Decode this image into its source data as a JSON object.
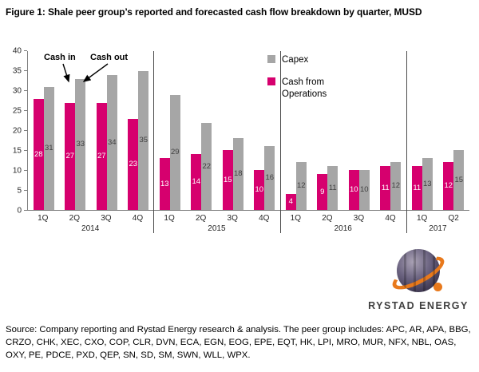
{
  "title": "Figure 1: Shale peer group’s reported and forecasted cash flow breakdown by quarter, MUSD",
  "annotations": {
    "cash_in": "Cash in",
    "cash_out": "Cash out"
  },
  "legend": [
    {
      "label": "Capex",
      "color": "#a6a6a6"
    },
    {
      "label": "Cash from Operations",
      "color": "#d6006e"
    }
  ],
  "logo": {
    "text": "RYSTAD ENERGY",
    "sphere_color": "#554d68",
    "swoosh_color": "#e8791c"
  },
  "source": "Source: Company reporting and Rystad Energy research & analysis. The peer group includes: APC, AR, APA, BBG, CRZO, CHK, XEC, CXO, COP, CLR, DVN, ECA, EGN, EOG, EPE, EQT, HK, LPI, MRO, MUR, NFX, NBL, OAS, OXY, PE, PDCE, PXD, QEP, SN, SD, SM, SWN, WLL, WPX.",
  "chart_data": {
    "type": "bar",
    "title": "Shale peer group’s reported and forecasted cash flow breakdown by quarter, MUSD",
    "xlabel": "",
    "ylabel": "",
    "ylim": [
      0,
      40
    ],
    "yticks": [
      0,
      5,
      10,
      15,
      20,
      25,
      30,
      35,
      40
    ],
    "grid": false,
    "legend_position": "top-center-inside",
    "groups": [
      {
        "year": "2014",
        "quarters": [
          "1Q",
          "2Q",
          "3Q",
          "4Q"
        ]
      },
      {
        "year": "2015",
        "quarters": [
          "1Q",
          "2Q",
          "3Q",
          "4Q"
        ]
      },
      {
        "year": "2016",
        "quarters": [
          "1Q",
          "2Q",
          "3Q",
          "4Q"
        ]
      },
      {
        "year": "2017",
        "quarters": [
          "1Q",
          "Q2"
        ]
      }
    ],
    "categories": [
      "1Q 2014",
      "2Q 2014",
      "3Q 2014",
      "4Q 2014",
      "1Q 2015",
      "2Q 2015",
      "3Q 2015",
      "4Q 2015",
      "1Q 2016",
      "2Q 2016",
      "3Q 2016",
      "4Q 2016",
      "1Q 2017",
      "Q2 2017"
    ],
    "series": [
      {
        "name": "Cash from Operations",
        "key": "cash-from-operations",
        "color": "#d6006e",
        "label_color": "#ffffff",
        "values": [
          28,
          27,
          27,
          23,
          13,
          14,
          15,
          10,
          4,
          9,
          10,
          11,
          11,
          12
        ]
      },
      {
        "name": "Capex",
        "key": "capex",
        "color": "#a6a6a6",
        "label_color": "#3f3f3f",
        "values": [
          31,
          33,
          34,
          35,
          29,
          22,
          18,
          16,
          12,
          11,
          10,
          12,
          13,
          15
        ]
      }
    ]
  }
}
